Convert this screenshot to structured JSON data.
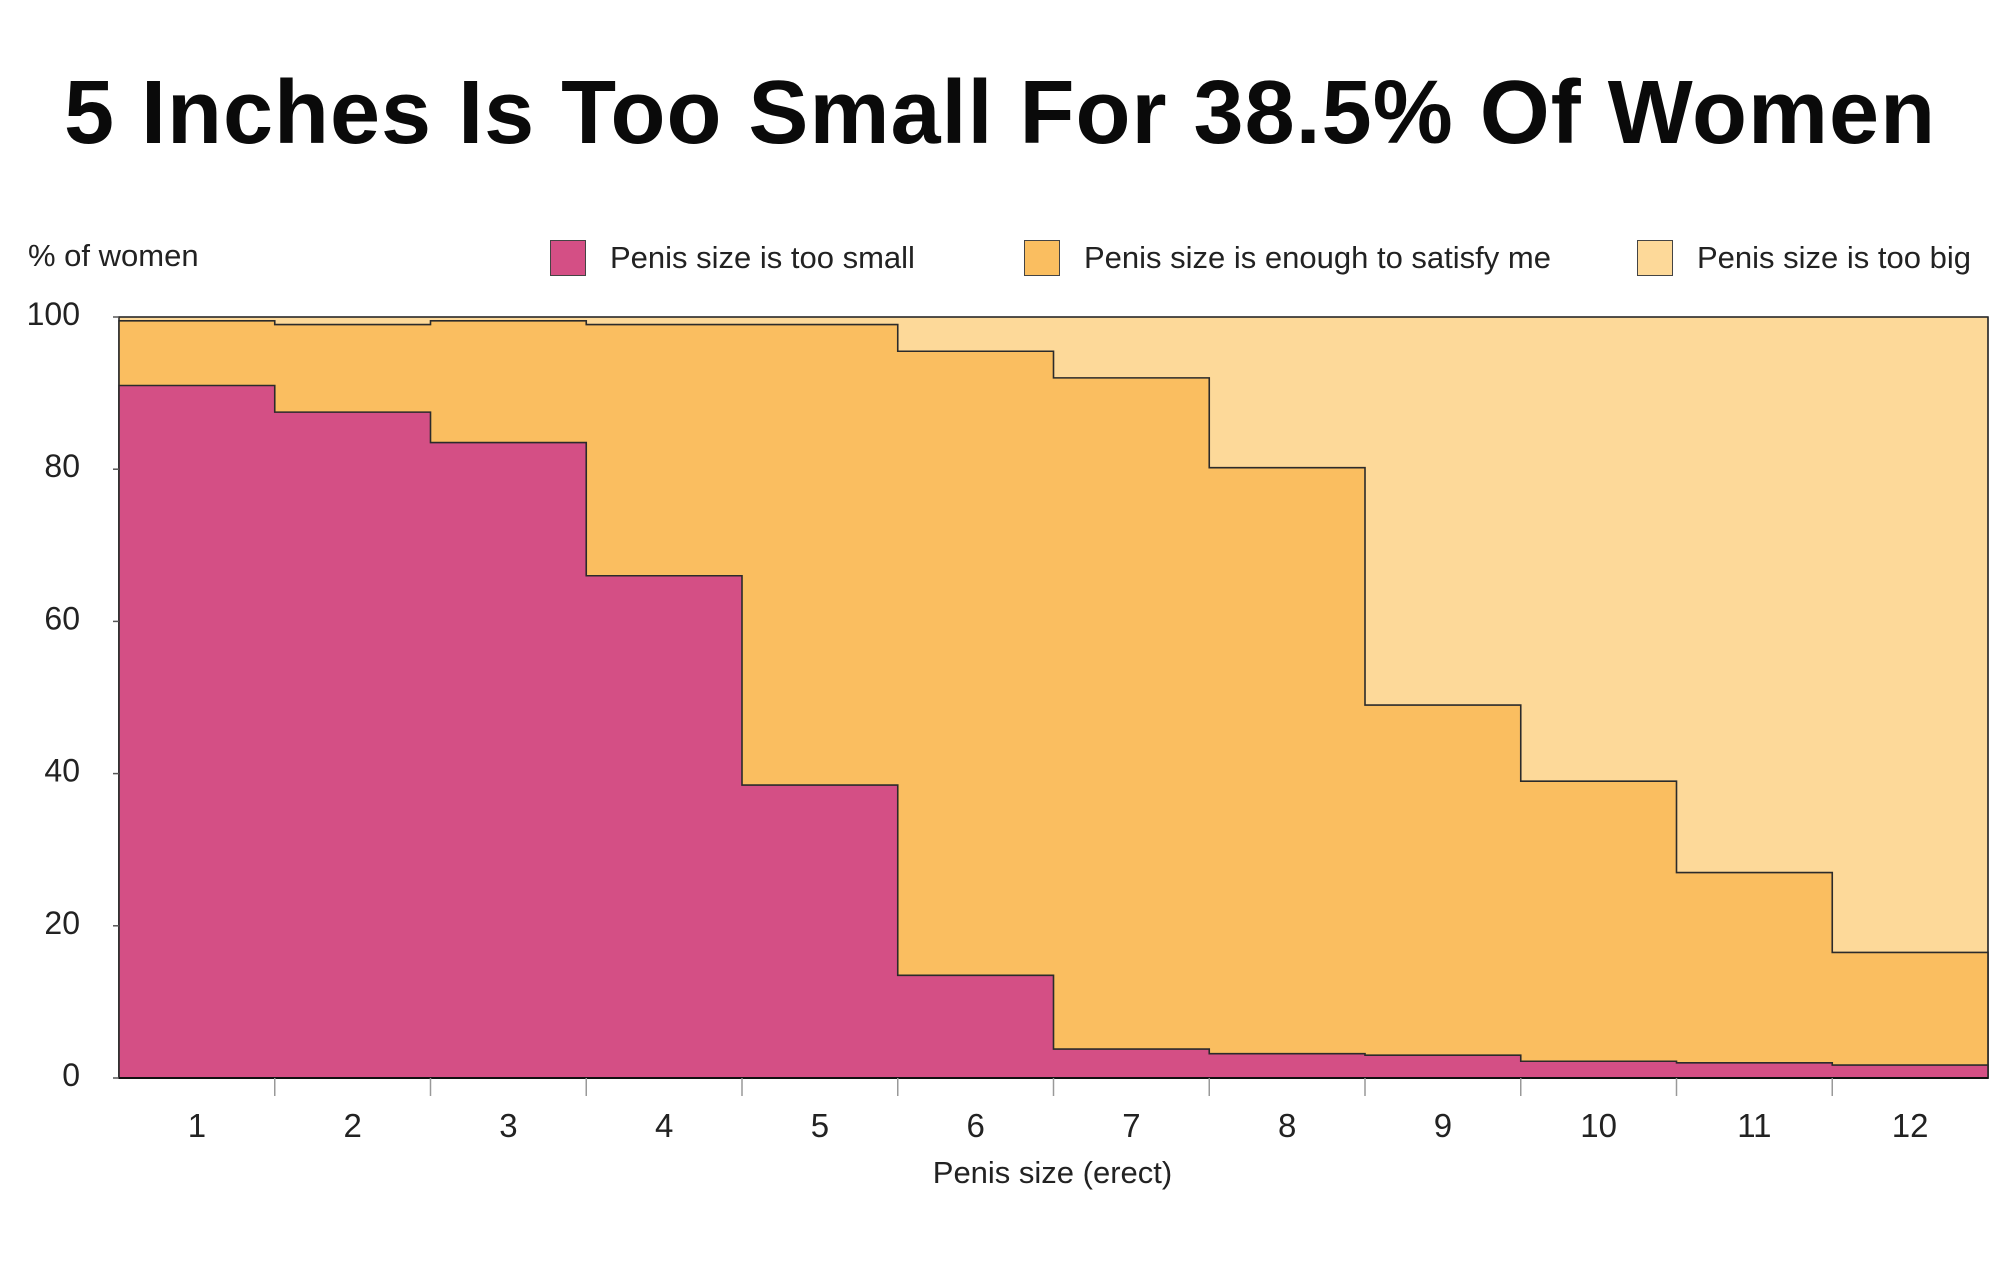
{
  "title": "5 Inches Is Too Small For 38.5% Of Women",
  "chart_data": {
    "type": "area",
    "title": "5 Inches Is Too Small For 38.5% Of Women",
    "xlabel": "Penis size (erect)",
    "ylabel": "% of women",
    "x": [
      1,
      2,
      3,
      4,
      5,
      6,
      7,
      8,
      9,
      10,
      11,
      12
    ],
    "x_tick_labels": [
      "1",
      "2",
      "3",
      "4",
      "5",
      "6",
      "7",
      "8",
      "9",
      "10",
      "11",
      "12"
    ],
    "y_ticks": [
      0,
      20,
      40,
      60,
      80,
      100
    ],
    "ylim": [
      0,
      100
    ],
    "stacked": true,
    "step": true,
    "legend_position": "top",
    "series": [
      {
        "name": "Penis size is too small",
        "color": "#d44f85",
        "values": [
          91,
          87.5,
          83.5,
          66,
          38.5,
          13.5,
          3.8,
          3.2,
          3.0,
          2.2,
          2.0,
          1.7
        ]
      },
      {
        "name": "Penis size is enough to satisfy me",
        "color": "#fabe60",
        "values": [
          8.5,
          11.5,
          16,
          33,
          60.5,
          82,
          88.2,
          77,
          46,
          36.8,
          25,
          14.8
        ]
      },
      {
        "name": "Penis size is too big",
        "color": "#fdd999",
        "values": [
          0.5,
          1,
          0.5,
          1,
          1,
          4.5,
          8,
          19.8,
          51,
          61,
          73,
          83.5
        ]
      }
    ]
  }
}
